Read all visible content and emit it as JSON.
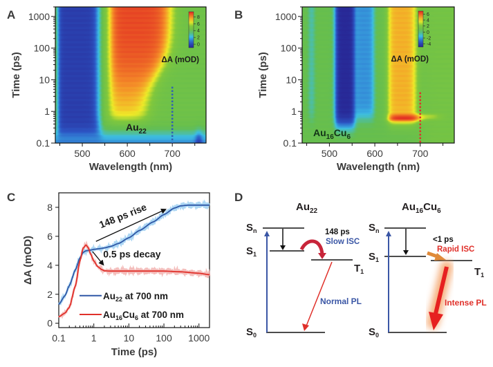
{
  "figure": {
    "panels": [
      "A",
      "B",
      "C",
      "D"
    ]
  },
  "chart_data": [
    {
      "panel": "A",
      "type": "heatmap",
      "title": "",
      "annotation": "Au22",
      "annotation_main": "Au",
      "annotation_sub": "22",
      "xlabel": "Wavelength (nm)",
      "ylabel": "Time (ps)",
      "xlim": [
        440,
        775
      ],
      "ylim": [
        0.1,
        2000
      ],
      "yscale": "log",
      "xticks": [
        500,
        600,
        700
      ],
      "yticks": [
        0.1,
        1,
        10,
        100,
        1000
      ],
      "ytick_labels": [
        "0.1",
        "1",
        "10",
        "100",
        "1000"
      ],
      "colorbar": {
        "label": "ΔA (mOD)",
        "ticks": [
          0,
          2,
          4,
          6,
          8
        ],
        "range": [
          -1,
          9.5
        ]
      },
      "marker_line": {
        "x": 700,
        "y_top": 6,
        "color": "#2f5fb3",
        "style": "dotted"
      },
      "features": [
        {
          "name": "bleach",
          "x_range": [
            450,
            530
          ],
          "value": -0.5,
          "t_onset": 0.15
        },
        {
          "name": "ESA",
          "x_range": [
            560,
            690
          ],
          "value": 8.5,
          "t_onset": 0.5,
          "note": "broadens to longer wavelengths over time"
        }
      ]
    },
    {
      "panel": "B",
      "type": "heatmap",
      "annotation_main": "Au",
      "annotation_sub1": "16",
      "annotation_mid": "Cu",
      "annotation_sub2": "6",
      "annotation": "Au16Cu6",
      "xlabel": "Wavelength (nm)",
      "ylabel": "Time (ps)",
      "xlim": [
        440,
        775
      ],
      "ylim": [
        0.1,
        2000
      ],
      "yscale": "log",
      "xticks": [
        500,
        600,
        700
      ],
      "yticks": [
        0.1,
        1,
        10,
        100,
        1000
      ],
      "ytick_labels": [
        "0.1",
        "1",
        "10",
        "100",
        "1000"
      ],
      "colorbar": {
        "label": "ΔA (mOD)",
        "ticks": [
          -4,
          -2,
          0,
          2,
          4,
          6
        ],
        "range": [
          -5,
          7
        ]
      },
      "marker_line": {
        "x": 700,
        "y_top": 4,
        "color": "#e0302a",
        "style": "dotted"
      },
      "features": [
        {
          "name": "bleach-1",
          "x_range": [
            510,
            555
          ],
          "value": -4.5,
          "t_onset": 0.35
        },
        {
          "name": "bleach-2",
          "x_range": [
            560,
            595
          ],
          "value": -1.5,
          "t_onset": 0.6
        },
        {
          "name": "ESA",
          "x_range": [
            625,
            690
          ],
          "value": 5,
          "t_onset": 0.45,
          "peak_t": 0.6,
          "peak_value": 7
        }
      ]
    },
    {
      "panel": "C",
      "type": "line",
      "xlabel": "Time (ps)",
      "ylabel": "ΔA (mOD)",
      "xscale": "log",
      "xlim": [
        0.1,
        2000
      ],
      "ylim": [
        -0.3,
        9
      ],
      "xticks": [
        0.1,
        1,
        10,
        100,
        1000
      ],
      "xtick_labels": [
        "0.1",
        "1",
        "10",
        "100",
        "1000"
      ],
      "yticks": [
        0,
        2,
        4,
        6,
        8
      ],
      "series": [
        {
          "name": "Au22 at 700 nm",
          "label_main": "Au",
          "label_sub": "22",
          "label_rest": " at 700 nm",
          "color": "#2e57a6",
          "raw_color": "#9fd0f2",
          "x": [
            0.1,
            0.15,
            0.2,
            0.3,
            0.4,
            0.5,
            0.6,
            0.8,
            1,
            1.5,
            2,
            3,
            5,
            10,
            20,
            50,
            100,
            200,
            300,
            500,
            1000,
            2000
          ],
          "y": [
            1.3,
            1.9,
            2.6,
            3.7,
            4.5,
            4.9,
            5.0,
            5.05,
            5.1,
            5.15,
            5.2,
            5.3,
            5.5,
            5.9,
            6.4,
            7.0,
            7.5,
            7.95,
            8.1,
            8.15,
            8.15,
            8.15
          ]
        },
        {
          "name": "Au16Cu6 at 700 nm",
          "label_main": "Au",
          "label_sub1": "16",
          "label_mid": "Cu",
          "label_sub2": "6",
          "label_rest": " at 700 nm",
          "color": "#e0302a",
          "raw_color": "#f2b3b0",
          "x": [
            0.1,
            0.15,
            0.2,
            0.3,
            0.4,
            0.5,
            0.6,
            0.7,
            0.8,
            1,
            1.3,
            1.7,
            2,
            3,
            5,
            10,
            50,
            100,
            300,
            1000,
            2000
          ],
          "y": [
            0.45,
            0.7,
            1.1,
            2.6,
            4.3,
            5.2,
            5.4,
            5.2,
            4.8,
            4.3,
            3.9,
            3.7,
            3.62,
            3.6,
            3.6,
            3.6,
            3.6,
            3.6,
            3.55,
            3.45,
            3.35
          ]
        }
      ],
      "annotations": [
        {
          "text": "148 ps rise",
          "arrow": "from 1.2 ps at 5.6 to 100 ps at 7.9"
        },
        {
          "text": "0.5 ps decay",
          "arrow": "from 0.9 ps at 4.95 to 1.6 ps at 4.0"
        }
      ]
    }
  ],
  "diagram": {
    "panel": "D",
    "left": {
      "title_main": "Au",
      "title_sub": "22",
      "levels": {
        "sn": "S",
        "sn_sub": "n",
        "s1": "S",
        "s1_sub": "1",
        "s0": "S",
        "s0_sub": "0",
        "t1": "T",
        "t1_sub": "1"
      },
      "isc_time": "148 ps",
      "isc_label": "Slow ISC",
      "pl_label": "Normal PL",
      "isc_color": "#c8253a",
      "pl_color": "#e0302a",
      "isc_label_color": "#3a56a5",
      "pl_label_color": "#3a56a5"
    },
    "right": {
      "title_main": "Au",
      "title_sub1": "16",
      "title_mid": "Cu",
      "title_sub2": "6",
      "levels": {
        "sn": "S",
        "sn_sub": "n",
        "s1": "S",
        "s1_sub": "1",
        "s0": "S",
        "s0_sub": "0",
        "t1": "T",
        "t1_sub": "1"
      },
      "isc_time": "<1 ps",
      "isc_label": "Rapid ISC",
      "pl_label": "Intense PL",
      "isc_color": "#e08a3a",
      "pl_color": "#e62020",
      "isc_label_color": "#e0302a",
      "pl_label_color": "#e0302a"
    },
    "excitation_color": "#3a56a5"
  }
}
